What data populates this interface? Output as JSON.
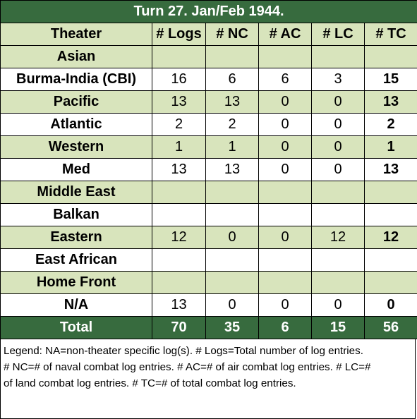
{
  "title": "Turn 27.  Jan/Feb 1944.",
  "columns": [
    "Theater",
    "# Logs",
    "# NC",
    "# AC",
    "# LC",
    "# TC"
  ],
  "rows": [
    {
      "theater": "Asian",
      "logs": "",
      "nc": "",
      "ac": "",
      "lc": "",
      "tc": ""
    },
    {
      "theater": "Burma-India (CBI)",
      "logs": "16",
      "nc": "6",
      "ac": "6",
      "lc": "3",
      "tc": "15"
    },
    {
      "theater": "Pacific",
      "logs": "13",
      "nc": "13",
      "ac": "0",
      "lc": "0",
      "tc": "13"
    },
    {
      "theater": "Atlantic",
      "logs": "2",
      "nc": "2",
      "ac": "0",
      "lc": "0",
      "tc": "2"
    },
    {
      "theater": "Western",
      "logs": "1",
      "nc": "1",
      "ac": "0",
      "lc": "0",
      "tc": "1"
    },
    {
      "theater": "Med",
      "logs": "13",
      "nc": "13",
      "ac": "0",
      "lc": "0",
      "tc": "13"
    },
    {
      "theater": "Middle East",
      "logs": "",
      "nc": "",
      "ac": "",
      "lc": "",
      "tc": ""
    },
    {
      "theater": "Balkan",
      "logs": "",
      "nc": "",
      "ac": "",
      "lc": "",
      "tc": ""
    },
    {
      "theater": "Eastern",
      "logs": "12",
      "nc": "0",
      "ac": "0",
      "lc": "12",
      "tc": "12"
    },
    {
      "theater": "East African",
      "logs": "",
      "nc": "",
      "ac": "",
      "lc": "",
      "tc": ""
    },
    {
      "theater": "Home Front",
      "logs": "",
      "nc": "",
      "ac": "",
      "lc": "",
      "tc": ""
    },
    {
      "theater": "N/A",
      "logs": "13",
      "nc": "0",
      "ac": "0",
      "lc": "0",
      "tc": "0"
    }
  ],
  "total": {
    "label": "Total",
    "logs": "70",
    "nc": "35",
    "ac": "6",
    "lc": "15",
    "tc": "56"
  },
  "legend": [
    "Legend:  NA=non-theater specific log(s).  # Logs=Total number of log entries.",
    "# NC=# of naval combat log entries.  # AC=# of air combat log entries.  # LC=#",
    "of land combat log entries.  # TC=# of total combat log entries."
  ],
  "colors": {
    "header_green": "#376b3e",
    "light_green": "#d8e4bc",
    "white": "#ffffff"
  }
}
